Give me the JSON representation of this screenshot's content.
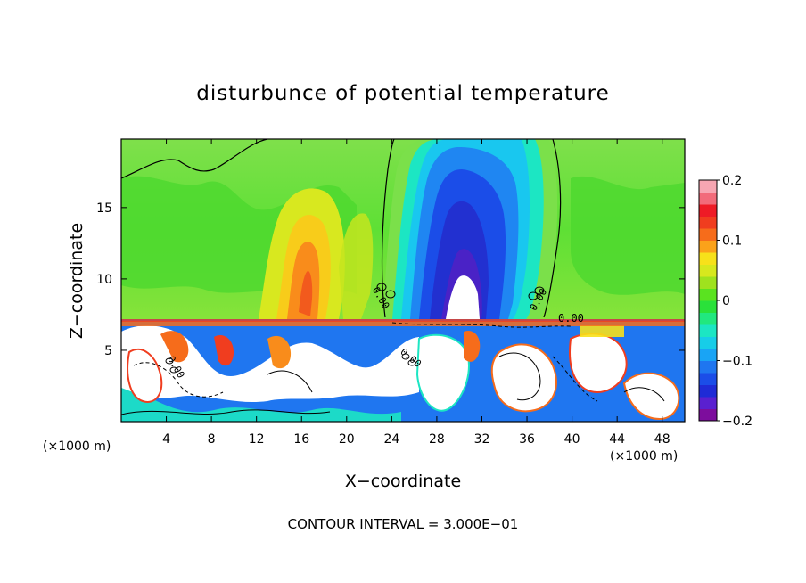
{
  "chart_data": {
    "type": "heatmap",
    "title": "disturbunce of potential temperature",
    "xlabel": "X−coordinate",
    "ylabel": "Z−coordinate",
    "x_unit_left": "(×1000 m)",
    "x_unit_right": "(×1000 m)",
    "x_ticks": [
      "4",
      "8",
      "12",
      "16",
      "20",
      "24",
      "28",
      "32",
      "36",
      "40",
      "44",
      "48"
    ],
    "y_ticks": [
      "5",
      "10",
      "15"
    ],
    "xlim": [
      0,
      50
    ],
    "ylim": [
      0,
      19.8
    ],
    "colorbar": {
      "ticks": [
        "0.2",
        "0.1",
        "0",
        "−0.1",
        "−0.2"
      ],
      "range": [
        -0.2,
        0.2
      ],
      "colors": [
        "#7d0d9d",
        "#5a20d0",
        "#1f2bd6",
        "#1b4de8",
        "#1f76f0",
        "#19a4f5",
        "#17cde8",
        "#1ce6c3",
        "#21e87f",
        "#2ae13a",
        "#5ae320",
        "#9fe21e",
        "#d7e81e",
        "#f7e11a",
        "#fba21a",
        "#f66c1b",
        "#f03d1f",
        "#ee1b26",
        "#f26b7a",
        "#f7a6b2"
      ]
    },
    "annotations": [
      "0.00",
      "0.00",
      "0.00",
      "0.00",
      "0.00"
    ],
    "footer": "CONTOUR INTERVAL = 3.000E−01"
  }
}
